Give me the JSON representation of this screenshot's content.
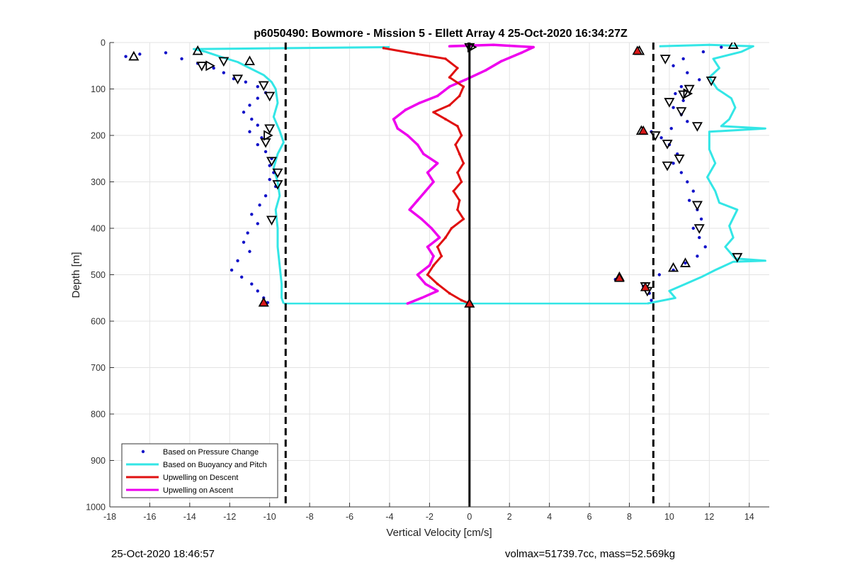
{
  "chart_data": {
    "type": "scatter",
    "title": "p6050490: Bowmore - Mission 5 - Ellett Array 4 25-Oct-2020 16:34:27Z",
    "xlabel": "Vertical Velocity [cm/s]",
    "ylabel": "Depth [m]",
    "xlim": [
      -18,
      15
    ],
    "ylim": [
      0,
      1000
    ],
    "y_reversed": true,
    "grid": true,
    "legend_position": "bottom-left",
    "x_ticks": [
      -18,
      -16,
      -14,
      -12,
      -10,
      -8,
      -6,
      -4,
      -2,
      0,
      2,
      4,
      6,
      8,
      10,
      12,
      14
    ],
    "y_ticks": [
      0,
      100,
      200,
      300,
      400,
      500,
      600,
      700,
      800,
      900,
      1000
    ],
    "vertical_lines": [
      {
        "x": -9.2,
        "style": "dashed",
        "color": "#000000"
      },
      {
        "x": 0,
        "style": "solid",
        "color": "#000000"
      },
      {
        "x": 9.2,
        "style": "dashed",
        "color": "#000000"
      }
    ],
    "series": [
      {
        "name": "Based on Pressure Change",
        "kind": "points",
        "color": "#1010c8",
        "descent": [
          [
            -17.2,
            30
          ],
          [
            -16.5,
            25
          ],
          [
            -15.2,
            22
          ],
          [
            -14.4,
            35
          ],
          [
            -13.6,
            45
          ],
          [
            -12.8,
            55
          ],
          [
            -12.3,
            65
          ],
          [
            -11.8,
            78
          ],
          [
            -11.2,
            85
          ],
          [
            -10.6,
            95
          ],
          [
            -10.2,
            108
          ],
          [
            -10.6,
            120
          ],
          [
            -11.0,
            135
          ],
          [
            -11.3,
            150
          ],
          [
            -10.9,
            165
          ],
          [
            -10.6,
            178
          ],
          [
            -11.0,
            192
          ],
          [
            -10.4,
            205
          ],
          [
            -10.6,
            220
          ],
          [
            -10.2,
            235
          ],
          [
            -9.9,
            250
          ],
          [
            -10.0,
            265
          ],
          [
            -9.8,
            280
          ],
          [
            -10.0,
            295
          ],
          [
            -9.7,
            310
          ],
          [
            -10.2,
            330
          ],
          [
            -10.5,
            350
          ],
          [
            -10.9,
            370
          ],
          [
            -10.6,
            390
          ],
          [
            -11.1,
            410
          ],
          [
            -11.3,
            430
          ],
          [
            -11.0,
            450
          ],
          [
            -11.6,
            470
          ],
          [
            -11.9,
            490
          ],
          [
            -11.4,
            505
          ],
          [
            -10.9,
            520
          ],
          [
            -10.6,
            535
          ],
          [
            -10.3,
            550
          ],
          [
            -10.1,
            560
          ]
        ],
        "ascent": [
          [
            12.6,
            10
          ],
          [
            11.7,
            20
          ],
          [
            10.7,
            35
          ],
          [
            10.2,
            50
          ],
          [
            10.9,
            65
          ],
          [
            11.5,
            80
          ],
          [
            10.6,
            95
          ],
          [
            10.3,
            110
          ],
          [
            10.7,
            125
          ],
          [
            10.2,
            140
          ],
          [
            10.6,
            155
          ],
          [
            10.9,
            170
          ],
          [
            10.1,
            185
          ],
          [
            9.1,
            192
          ],
          [
            9.6,
            205
          ],
          [
            10.0,
            220
          ],
          [
            10.4,
            240
          ],
          [
            10.2,
            260
          ],
          [
            10.6,
            280
          ],
          [
            10.9,
            300
          ],
          [
            11.2,
            320
          ],
          [
            11.0,
            340
          ],
          [
            11.4,
            360
          ],
          [
            11.6,
            380
          ],
          [
            11.2,
            400
          ],
          [
            11.5,
            420
          ],
          [
            11.8,
            440
          ],
          [
            11.4,
            460
          ],
          [
            10.8,
            475
          ],
          [
            10.2,
            490
          ],
          [
            9.5,
            500
          ],
          [
            7.3,
            510
          ],
          [
            8.7,
            525
          ],
          [
            9.0,
            540
          ],
          [
            9.1,
            555
          ]
        ]
      },
      {
        "name": "Based on Buoyancy and Pitch",
        "kind": "line",
        "color": "#33e6e6",
        "descent": [
          [
            -4.0,
            10
          ],
          [
            -13.8,
            14
          ],
          [
            -13.2,
            20
          ],
          [
            -12.5,
            30
          ],
          [
            -11.6,
            42
          ],
          [
            -11.0,
            55
          ],
          [
            -10.3,
            70
          ],
          [
            -9.9,
            85
          ],
          [
            -9.7,
            100
          ],
          [
            -9.6,
            130
          ],
          [
            -9.8,
            160
          ],
          [
            -9.5,
            190
          ],
          [
            -9.3,
            215
          ],
          [
            -9.6,
            240
          ],
          [
            -9.8,
            270
          ],
          [
            -9.6,
            300
          ],
          [
            -9.5,
            330
          ],
          [
            -9.7,
            360
          ],
          [
            -9.6,
            400
          ],
          [
            -9.6,
            440
          ],
          [
            -9.5,
            480
          ],
          [
            -9.4,
            520
          ],
          [
            -9.4,
            550
          ],
          [
            -9.3,
            562
          ]
        ],
        "ascent": [
          [
            8.9,
            562
          ],
          [
            10.3,
            550
          ],
          [
            10.0,
            535
          ],
          [
            10.8,
            520
          ],
          [
            11.6,
            505
          ],
          [
            12.3,
            490
          ],
          [
            13.2,
            472
          ],
          [
            14.8,
            470
          ],
          [
            13.3,
            465
          ],
          [
            12.8,
            440
          ],
          [
            13.2,
            420
          ],
          [
            13.0,
            395
          ],
          [
            13.4,
            360
          ],
          [
            12.5,
            345
          ],
          [
            12.3,
            320
          ],
          [
            11.9,
            290
          ],
          [
            12.3,
            260
          ],
          [
            12.0,
            230
          ],
          [
            12.0,
            192
          ],
          [
            14.8,
            185
          ],
          [
            12.6,
            180
          ],
          [
            13.0,
            165
          ],
          [
            13.3,
            140
          ],
          [
            13.1,
            120
          ],
          [
            12.4,
            100
          ],
          [
            12.0,
            75
          ],
          [
            12.5,
            55
          ],
          [
            12.2,
            35
          ],
          [
            13.6,
            20
          ],
          [
            14.2,
            8
          ],
          [
            12.0,
            5
          ],
          [
            9.5,
            8
          ]
        ]
      },
      {
        "name": "Upwelling on Descent",
        "kind": "line",
        "color": "#e01010",
        "values": [
          [
            -4.3,
            12
          ],
          [
            -2.6,
            25
          ],
          [
            -1.2,
            35
          ],
          [
            -0.6,
            55
          ],
          [
            -1.0,
            75
          ],
          [
            -0.3,
            95
          ],
          [
            -0.5,
            115
          ],
          [
            -1.0,
            135
          ],
          [
            -1.8,
            150
          ],
          [
            -1.2,
            165
          ],
          [
            -0.6,
            180
          ],
          [
            -0.4,
            200
          ],
          [
            -0.7,
            220
          ],
          [
            -0.5,
            240
          ],
          [
            -0.3,
            260
          ],
          [
            -0.6,
            280
          ],
          [
            -0.4,
            300
          ],
          [
            -0.8,
            320
          ],
          [
            -0.5,
            340
          ],
          [
            -0.6,
            360
          ],
          [
            -0.3,
            380
          ],
          [
            -0.9,
            400
          ],
          [
            -1.2,
            420
          ],
          [
            -1.6,
            440
          ],
          [
            -1.4,
            460
          ],
          [
            -1.8,
            480
          ],
          [
            -2.1,
            500
          ],
          [
            -1.6,
            520
          ],
          [
            -1.0,
            540
          ],
          [
            -0.4,
            555
          ],
          [
            0.0,
            562
          ]
        ]
      },
      {
        "name": "Upwelling on Ascent",
        "kind": "line",
        "color": "#ee00ee",
        "values": [
          [
            -3.1,
            562
          ],
          [
            -2.4,
            550
          ],
          [
            -1.6,
            535
          ],
          [
            -2.2,
            520
          ],
          [
            -2.6,
            500
          ],
          [
            -2.0,
            480
          ],
          [
            -1.8,
            460
          ],
          [
            -2.1,
            440
          ],
          [
            -1.5,
            420
          ],
          [
            -1.9,
            400
          ],
          [
            -2.4,
            380
          ],
          [
            -3.0,
            360
          ],
          [
            -2.6,
            340
          ],
          [
            -2.2,
            320
          ],
          [
            -1.8,
            300
          ],
          [
            -2.1,
            280
          ],
          [
            -1.6,
            260
          ],
          [
            -2.3,
            240
          ],
          [
            -2.6,
            220
          ],
          [
            -3.1,
            200
          ],
          [
            -3.6,
            185
          ],
          [
            -3.8,
            165
          ],
          [
            -3.2,
            145
          ],
          [
            -2.5,
            130
          ],
          [
            -1.6,
            115
          ],
          [
            -1.0,
            95
          ],
          [
            -0.2,
            80
          ],
          [
            0.8,
            60
          ],
          [
            1.6,
            40
          ],
          [
            2.6,
            22
          ],
          [
            3.2,
            10
          ],
          [
            1.2,
            5
          ],
          [
            -1.0,
            8
          ]
        ]
      }
    ],
    "markers": {
      "up_triangles": [
        [
          -16.8,
          30
        ],
        [
          -13.6,
          18
        ],
        [
          -11.0,
          40
        ],
        [
          -10.3,
          560
        ],
        [
          13.2,
          5
        ],
        [
          10.8,
          475
        ],
        [
          10.2,
          485
        ],
        [
          7.5,
          505
        ],
        [
          8.5,
          18
        ],
        [
          8.6,
          190
        ],
        [
          0.0,
          562
        ]
      ],
      "down_triangles": [
        [
          -12.3,
          40
        ],
        [
          -13.4,
          50
        ],
        [
          -11.6,
          78
        ],
        [
          -10.3,
          92
        ],
        [
          -10.0,
          115
        ],
        [
          -10.0,
          185
        ],
        [
          -10.2,
          215
        ],
        [
          -9.9,
          255
        ],
        [
          -9.6,
          280
        ],
        [
          -9.6,
          305
        ],
        [
          -9.9,
          382
        ],
        [
          9.8,
          35
        ],
        [
          12.1,
          82
        ],
        [
          11.0,
          100
        ],
        [
          10.7,
          112
        ],
        [
          10.0,
          128
        ],
        [
          10.6,
          148
        ],
        [
          11.4,
          180
        ],
        [
          9.3,
          200
        ],
        [
          9.9,
          218
        ],
        [
          10.5,
          250
        ],
        [
          9.9,
          265
        ],
        [
          11.4,
          350
        ],
        [
          11.5,
          400
        ],
        [
          13.4,
          462
        ],
        [
          8.8,
          525
        ],
        [
          8.9,
          535
        ],
        [
          0.0,
          10
        ]
      ],
      "right_triangles": [
        [
          -13.0,
          50
        ],
        [
          -10.1,
          200
        ],
        [
          0.1,
          10
        ],
        [
          10.9,
          110
        ]
      ],
      "red_filled_markers": [
        [
          8.4,
          18
        ],
        [
          8.7,
          190
        ],
        [
          7.5,
          507
        ],
        [
          8.8,
          527
        ],
        [
          -10.3,
          560
        ],
        [
          0.0,
          562
        ]
      ]
    },
    "legend": [
      {
        "label": "Based on Pressure Change",
        "style": "dot",
        "color": "#1010c8"
      },
      {
        "label": "Based on Buoyancy and Pitch",
        "style": "line",
        "color": "#33e6e6"
      },
      {
        "label": "Upwelling on Descent",
        "style": "line",
        "color": "#e01010"
      },
      {
        "label": "Upwelling on Ascent",
        "style": "line",
        "color": "#ee00ee"
      }
    ]
  },
  "footer": {
    "timestamp": "25-Oct-2020 18:46:57",
    "info": "volmax=51739.7cc, mass=52.569kg"
  }
}
